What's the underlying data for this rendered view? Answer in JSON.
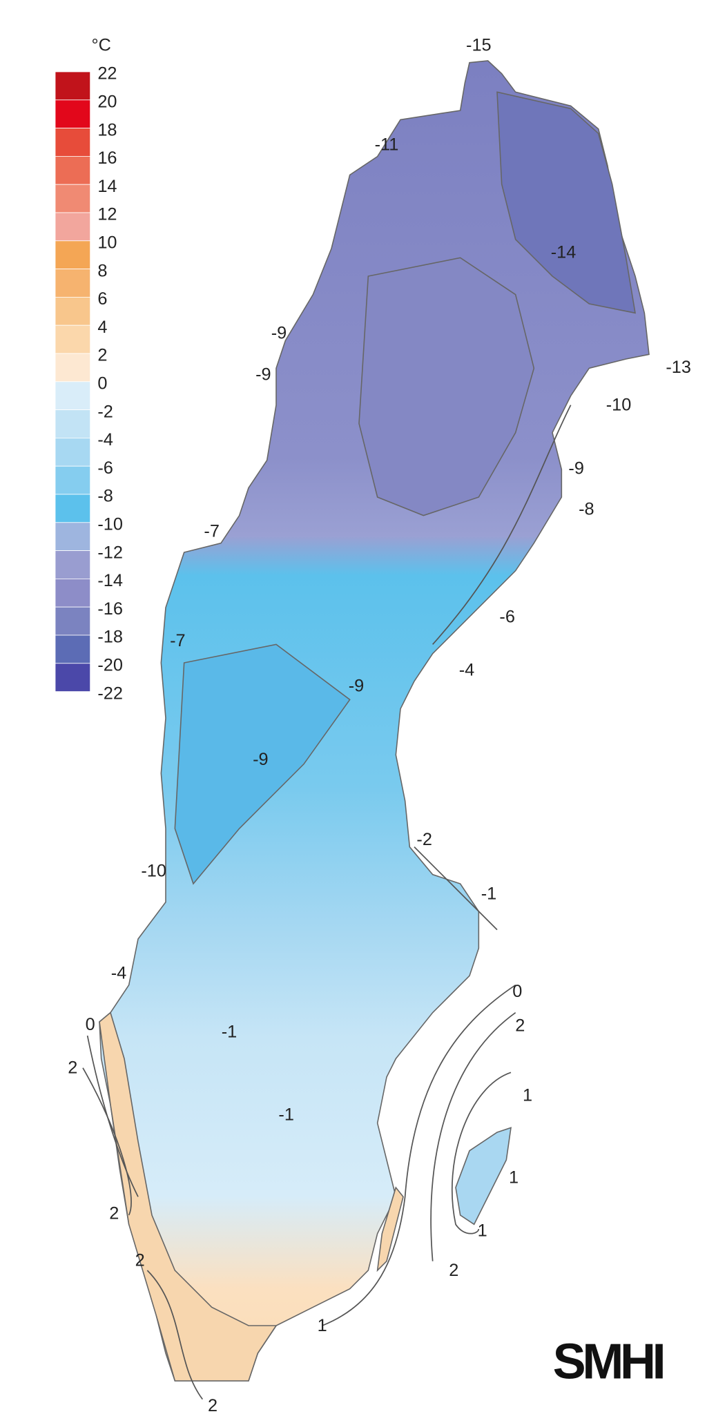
{
  "legend": {
    "unit": "°C",
    "labels": [
      "22",
      "20",
      "18",
      "16",
      "14",
      "12",
      "10",
      "8",
      "6",
      "4",
      "2",
      "0",
      "-2",
      "-4",
      "-6",
      "-8",
      "-10",
      "-12",
      "-14",
      "-16",
      "-18",
      "-20",
      "-22"
    ],
    "colors": [
      "#c1131b",
      "#e2071b",
      "#e74c3a",
      "#ec6d55",
      "#f08a73",
      "#f2a69d",
      "#f4a655",
      "#f6b36f",
      "#f8c68c",
      "#fbd7ab",
      "#fde8d2",
      "#d9edf9",
      "#c2e3f5",
      "#a7d8f2",
      "#85cdef",
      "#5cc1ec",
      "#9eb5df",
      "#999dd0",
      "#8d8dc8",
      "#7b83c0",
      "#5c6cb5",
      "#4b48a9"
    ]
  },
  "contour_labels": [
    "-15",
    "-11",
    "-14",
    "-9",
    "-9",
    "-13",
    "-10",
    "-9",
    "-8",
    "-7",
    "-6",
    "-7",
    "-4",
    "-9",
    "-9",
    "-2",
    "-1",
    "-10",
    "-4",
    "0",
    "0",
    "-1",
    "2",
    "2",
    "1",
    "-1",
    "1",
    "2",
    "1",
    "2",
    "2",
    "1",
    "2"
  ],
  "logo": "SMHI"
}
